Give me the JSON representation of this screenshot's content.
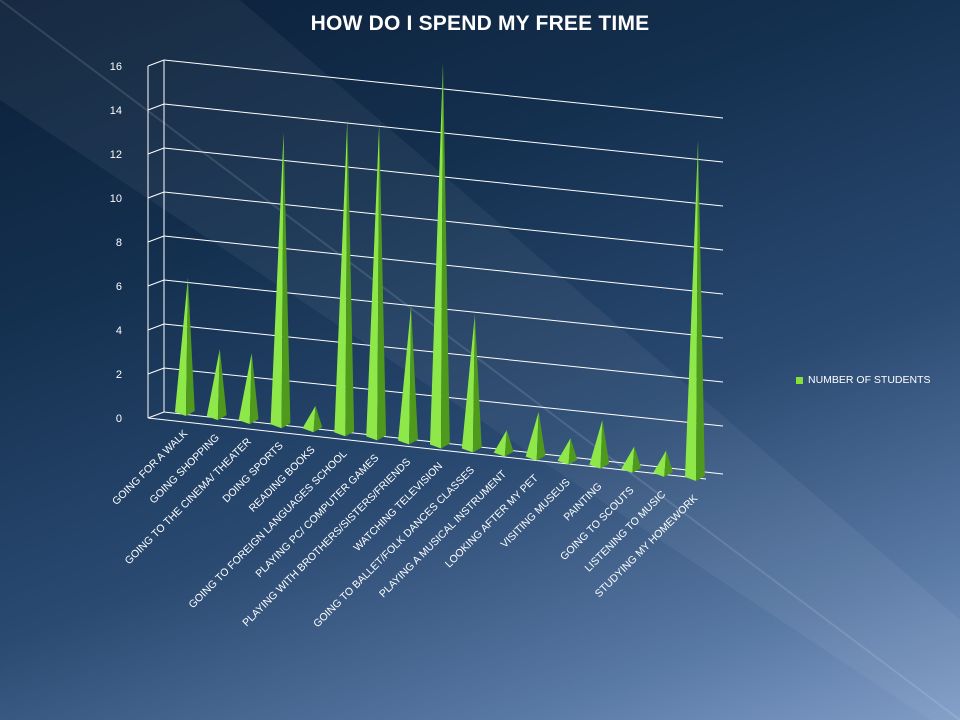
{
  "chart_data": {
    "type": "bar",
    "title": "HOW DO I SPEND MY FREE TIME",
    "categories": [
      "GOING FOR A WALK",
      "GOING SHOPPING",
      "GOING TO THE CINEMA/ THEATER",
      "DOING SPORTS",
      "READING BOOKS",
      "GOING TO FOREIGN LANGUAGES SCHOOL",
      "PLAYING PC/ COMPUTER GAMES",
      "PLAYING WITH BROTHERS/SISTERS/FRIENDS",
      "WATCHING TELEVISION",
      "GOING TO BALLET/FOLK DANCES CLASSES",
      "PLAYING A MUSICAL INSTRUMENT",
      "LOOKING AFTER MY PET",
      "VISITING MUSEUS",
      "PAINTING",
      "GOING TO SCOUTS",
      "LISTENING TO MUSIC",
      "STUDYING MY HOMEWORK"
    ],
    "series": [
      {
        "name": "NUMBER OF STUDENTS",
        "values": [
          6,
          3,
          3,
          13,
          1,
          14,
          14,
          6,
          17,
          6,
          1,
          2,
          1,
          2,
          1,
          1,
          15
        ],
        "color": "#86e23a"
      }
    ],
    "yticks": [
      "0",
      "2",
      "4",
      "6",
      "8",
      "10",
      "12",
      "14",
      "16"
    ],
    "ylim": [
      0,
      16
    ],
    "legend_position": "right",
    "grid": true
  }
}
